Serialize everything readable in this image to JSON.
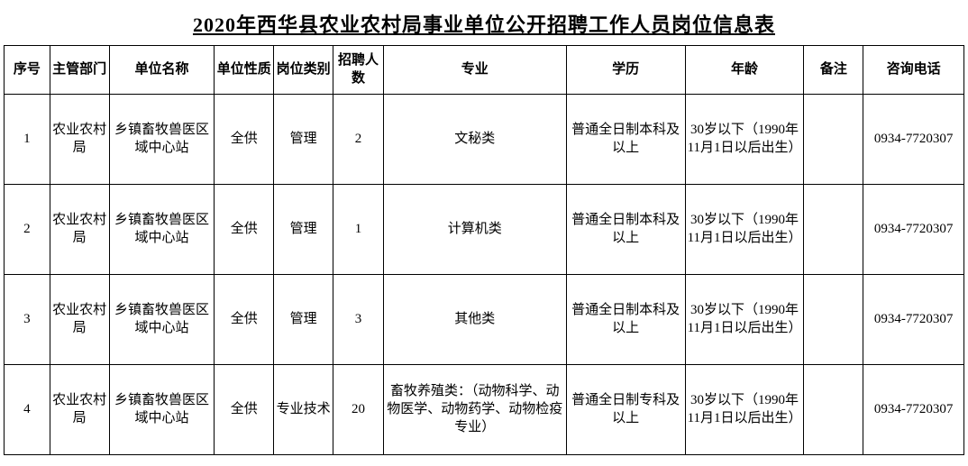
{
  "title": "2020年西华县农业农村局事业单位公开招聘工作人员岗位信息表",
  "columns": [
    "序号",
    "主管部门",
    "单位名称",
    "单位性质",
    "岗位类别",
    "招聘人数",
    "专业",
    "学历",
    "年龄",
    "备注",
    "咨询电话"
  ],
  "column_classes": [
    "col-seq",
    "col-dept",
    "col-unit",
    "col-nature",
    "col-ptype",
    "col-count",
    "col-major",
    "col-edu",
    "col-age",
    "col-note",
    "col-phone"
  ],
  "rows": [
    {
      "seq": "1",
      "dept": "农业农村局",
      "unit": "乡镇畜牧兽医区域中心站",
      "nature": "全供",
      "ptype": "管理",
      "count": "2",
      "major": "文秘类",
      "edu": "普通全日制本科及以上",
      "age": "30岁以下（1990年11月1日以后出生）",
      "note": "",
      "phone": "0934-7720307"
    },
    {
      "seq": "2",
      "dept": "农业农村局",
      "unit": "乡镇畜牧兽医区域中心站",
      "nature": "全供",
      "ptype": "管理",
      "count": "1",
      "major": "计算机类",
      "edu": "普通全日制本科及以上",
      "age": "30岁以下（1990年11月1日以后出生）",
      "note": "",
      "phone": "0934-7720307"
    },
    {
      "seq": "3",
      "dept": "农业农村局",
      "unit": "乡镇畜牧兽医区域中心站",
      "nature": "全供",
      "ptype": "管理",
      "count": "3",
      "major": "其他类",
      "edu": "普通全日制本科及以上",
      "age": "30岁以下（1990年11月1日以后出生）",
      "note": "",
      "phone": "0934-7720307"
    },
    {
      "seq": "4",
      "dept": "农业农村局",
      "unit": "乡镇畜牧兽医区域中心站",
      "nature": "全供",
      "ptype": "专业技术",
      "count": "20",
      "major": "畜牧养殖类：（动物科学、动物医学、动物药学、动物检疫专业）",
      "edu": "普通全日制专科及以上",
      "age": "30岁以下（1990年11月1日以后出生）",
      "note": "",
      "phone": "0934-7720307"
    }
  ],
  "styling": {
    "border_color": "#000000",
    "background_color": "#ffffff",
    "font_family": "SimSun",
    "title_fontsize": 22,
    "cell_fontsize": 15
  }
}
